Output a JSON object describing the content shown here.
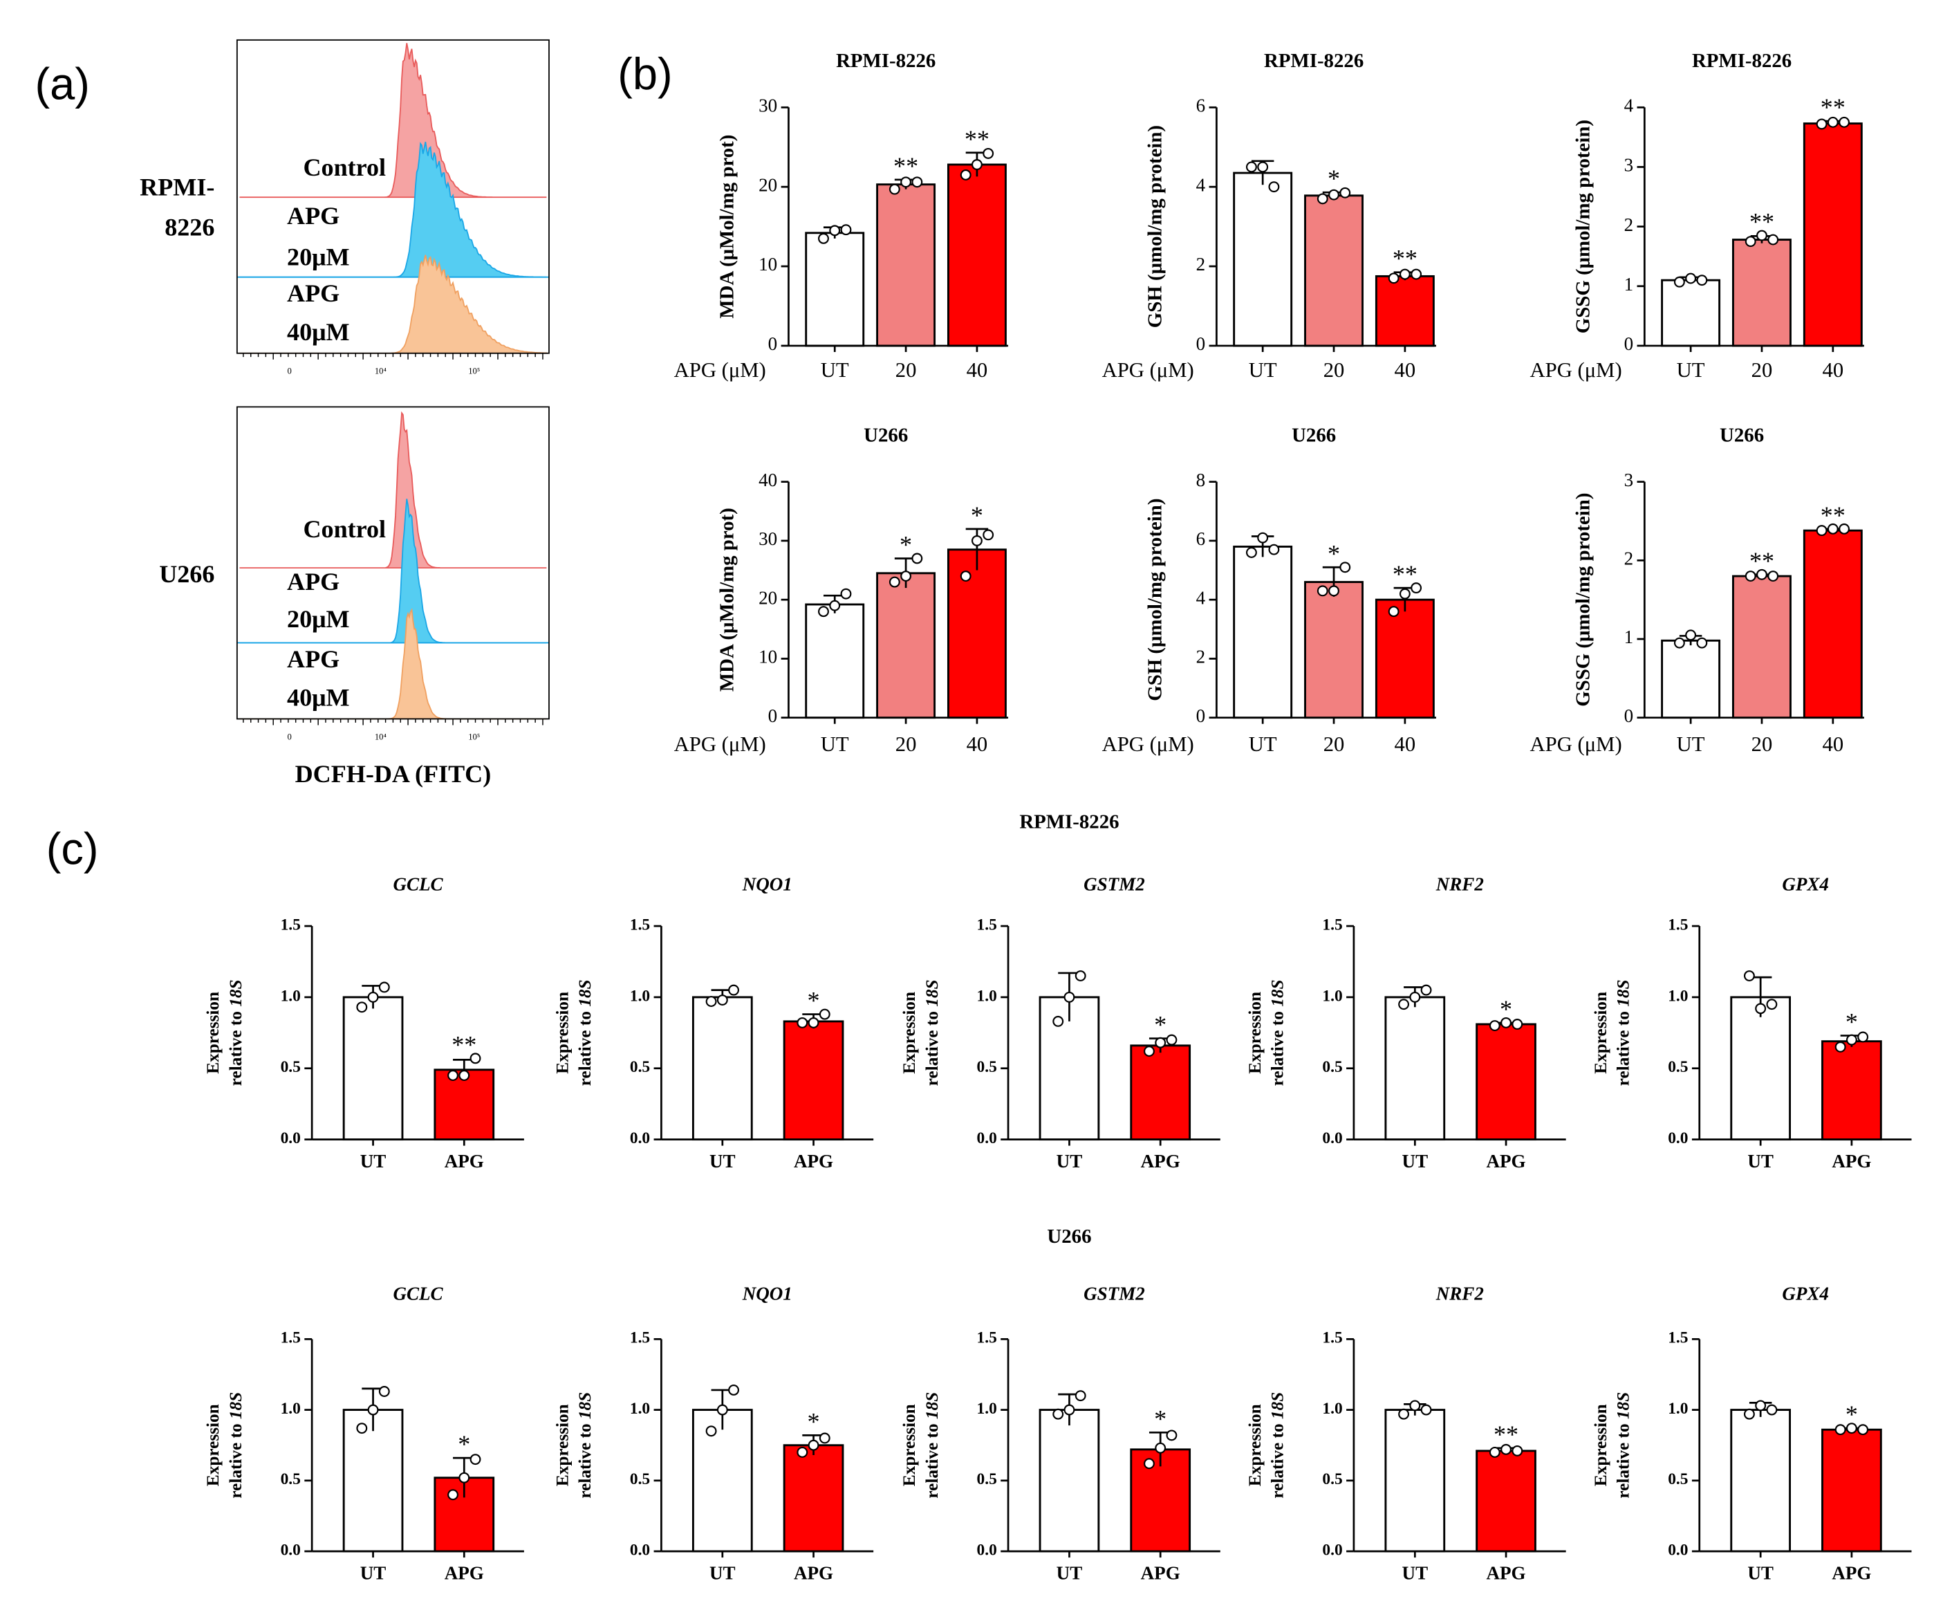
{
  "panels": {
    "a": "(a)",
    "b": "(b)",
    "c": "(c)"
  },
  "flow": {
    "groups": [
      {
        "cell": [
          "RPMI-",
          "8226"
        ],
        "labels": [
          "Control",
          "APG",
          "20μM",
          "APG",
          "40μM"
        ]
      },
      {
        "cell": [
          "U266"
        ],
        "labels": [
          "Control",
          "APG",
          "20μM",
          "APG",
          "40μM"
        ]
      }
    ],
    "xtick_labels": [
      "0",
      "10⁴",
      "10⁵"
    ],
    "xlabel": "DCFH-DA (FITC)"
  },
  "sections": [
    "RPMI-8226",
    "U266"
  ],
  "chart_data": [
    {
      "type": "bar",
      "title": "RPMI-8226",
      "ylabel": "MDA (μMol/mg prot)",
      "xlabel": "APG (μM)",
      "categories": [
        "UT",
        "20",
        "40"
      ],
      "colors": [
        "#ffffff",
        "#f28080",
        "#ff0000"
      ],
      "values": [
        14.2,
        20.3,
        22.8
      ],
      "errors": [
        0.7,
        0.6,
        1.5
      ],
      "points": [
        [
          13.5,
          14.5,
          14.6
        ],
        [
          19.7,
          20.6,
          20.6
        ],
        [
          21.5,
          22.8,
          24.2
        ]
      ],
      "annotations": [
        null,
        "**",
        "**"
      ],
      "ylim": [
        0,
        30
      ],
      "yticks": [
        0,
        10,
        20,
        30
      ]
    },
    {
      "type": "bar",
      "title": "RPMI-8226",
      "ylabel": "GSH (μmol/mg protein)",
      "xlabel": "APG (μM)",
      "categories": [
        "UT",
        "20",
        "40"
      ],
      "colors": [
        "#ffffff",
        "#f28080",
        "#ff0000"
      ],
      "values": [
        4.35,
        3.78,
        1.75
      ],
      "errors": [
        0.3,
        0.08,
        0.1
      ],
      "points": [
        [
          4.5,
          4.5,
          4.0
        ],
        [
          3.7,
          3.8,
          3.85
        ],
        [
          1.7,
          1.8,
          1.8
        ]
      ],
      "annotations": [
        null,
        "*",
        "**"
      ],
      "ylim": [
        0,
        6
      ],
      "yticks": [
        0,
        2,
        4,
        6
      ]
    },
    {
      "type": "bar",
      "title": "RPMI-8226",
      "ylabel": "GSSG (μmol/mg protein)",
      "xlabel": "APG (μM)",
      "categories": [
        "UT",
        "20",
        "40"
      ],
      "colors": [
        "#ffffff",
        "#f28080",
        "#ff0000"
      ],
      "values": [
        1.1,
        1.78,
        3.73
      ],
      "errors": [
        0.05,
        0.06,
        0.04
      ],
      "points": [
        [
          1.07,
          1.13,
          1.1
        ],
        [
          1.75,
          1.85,
          1.78
        ],
        [
          3.72,
          3.75,
          3.75
        ]
      ],
      "annotations": [
        null,
        "**",
        "**"
      ],
      "ylim": [
        0,
        4
      ],
      "yticks": [
        0,
        1,
        2,
        3,
        4
      ]
    },
    {
      "type": "bar",
      "title": "U266",
      "ylabel": "MDA (μMol/mg prot)",
      "xlabel": "APG (μM)",
      "categories": [
        "UT",
        "20",
        "40"
      ],
      "colors": [
        "#ffffff",
        "#f28080",
        "#ff0000"
      ],
      "values": [
        19.2,
        24.5,
        28.5
      ],
      "errors": [
        1.5,
        2.5,
        3.5
      ],
      "points": [
        [
          18,
          19,
          21
        ],
        [
          23,
          24,
          27
        ],
        [
          24,
          30,
          31
        ]
      ],
      "annotations": [
        null,
        "*",
        "*"
      ],
      "ylim": [
        0,
        40
      ],
      "yticks": [
        0,
        10,
        20,
        30,
        40
      ]
    },
    {
      "type": "bar",
      "title": "U266",
      "ylabel": "GSH (μmol/mg protein)",
      "xlabel": "APG (μM)",
      "categories": [
        "UT",
        "20",
        "40"
      ],
      "colors": [
        "#ffffff",
        "#f28080",
        "#ff0000"
      ],
      "values": [
        5.8,
        4.6,
        4.0
      ],
      "errors": [
        0.35,
        0.5,
        0.4
      ],
      "points": [
        [
          5.6,
          6.1,
          5.7
        ],
        [
          4.3,
          4.3,
          5.1
        ],
        [
          3.6,
          4.2,
          4.4
        ]
      ],
      "annotations": [
        null,
        "*",
        "**"
      ],
      "ylim": [
        0,
        8
      ],
      "yticks": [
        0,
        2,
        4,
        6,
        8
      ]
    },
    {
      "type": "bar",
      "title": "U266",
      "ylabel": "GSSG (μmol/mg protein)",
      "xlabel": "APG (μM)",
      "categories": [
        "UT",
        "20",
        "40"
      ],
      "colors": [
        "#ffffff",
        "#f28080",
        "#ff0000"
      ],
      "values": [
        0.98,
        1.8,
        2.38
      ],
      "errors": [
        0.06,
        0.02,
        0.02
      ],
      "points": [
        [
          0.95,
          1.05,
          0.95
        ],
        [
          1.8,
          1.82,
          1.8
        ],
        [
          2.38,
          2.4,
          2.4
        ]
      ],
      "annotations": [
        null,
        "**",
        "**"
      ],
      "ylim": [
        0,
        3
      ],
      "yticks": [
        0,
        1,
        2,
        3
      ]
    },
    {
      "type": "bar",
      "title": "GCLC",
      "title_style": "italic",
      "ylabel": [
        "Expression",
        "relative to"
      ],
      "ylabel_italic": "18S",
      "categories": [
        "UT",
        "APG"
      ],
      "colors": [
        "#ffffff",
        "#ff0000"
      ],
      "values": [
        1.0,
        0.49
      ],
      "errors": [
        0.08,
        0.07
      ],
      "points": [
        [
          0.93,
          1.0,
          1.07
        ],
        [
          0.45,
          0.45,
          0.57
        ]
      ],
      "annotations": [
        null,
        "**"
      ],
      "ylim": [
        0,
        1.5
      ],
      "yticks": [
        {
          "value": 0,
          "label": "0.0"
        },
        0.5,
        {
          "value": 1,
          "label": "1.0"
        },
        1.5
      ]
    },
    {
      "type": "bar",
      "title": "NQO1",
      "title_style": "italic",
      "ylabel": [
        "Expression",
        "relative to"
      ],
      "ylabel_italic": "18S",
      "categories": [
        "UT",
        "APG"
      ],
      "colors": [
        "#ffffff",
        "#ff0000"
      ],
      "values": [
        1.0,
        0.83
      ],
      "errors": [
        0.05,
        0.05
      ],
      "points": [
        [
          0.97,
          0.98,
          1.05
        ],
        [
          0.82,
          0.82,
          0.88
        ]
      ],
      "annotations": [
        null,
        "*"
      ],
      "ylim": [
        0,
        1.5
      ],
      "yticks": [
        {
          "value": 0,
          "label": "0.0"
        },
        0.5,
        {
          "value": 1,
          "label": "1.0"
        },
        1.5
      ]
    },
    {
      "type": "bar",
      "title": "GSTM2",
      "title_style": "italic",
      "ylabel": [
        "Expression",
        "relative to"
      ],
      "ylabel_italic": "18S",
      "categories": [
        "UT",
        "APG"
      ],
      "colors": [
        "#ffffff",
        "#ff0000"
      ],
      "values": [
        1.0,
        0.66
      ],
      "errors": [
        0.17,
        0.05
      ],
      "points": [
        [
          0.83,
          1.0,
          1.15
        ],
        [
          0.62,
          0.68,
          0.7
        ]
      ],
      "annotations": [
        null,
        "*"
      ],
      "ylim": [
        0,
        1.5
      ],
      "yticks": [
        {
          "value": 0,
          "label": "0.0"
        },
        0.5,
        {
          "value": 1,
          "label": "1.0"
        },
        1.5
      ]
    },
    {
      "type": "bar",
      "title": "NRF2",
      "title_style": "italic",
      "ylabel": [
        "Expression",
        "relative to"
      ],
      "ylabel_italic": "18S",
      "categories": [
        "UT",
        "APG"
      ],
      "colors": [
        "#ffffff",
        "#ff0000"
      ],
      "values": [
        1.0,
        0.81
      ],
      "errors": [
        0.07,
        0.01
      ],
      "points": [
        [
          0.95,
          1.0,
          1.05
        ],
        [
          0.8,
          0.82,
          0.81
        ]
      ],
      "annotations": [
        null,
        "*"
      ],
      "ylim": [
        0,
        1.5
      ],
      "yticks": [
        {
          "value": 0,
          "label": "0.0"
        },
        0.5,
        {
          "value": 1,
          "label": "1.0"
        },
        1.5
      ]
    },
    {
      "type": "bar",
      "title": "GPX4",
      "title_style": "italic",
      "ylabel": [
        "Expression",
        "relative to"
      ],
      "ylabel_italic": "18S",
      "categories": [
        "UT",
        "APG"
      ],
      "colors": [
        "#ffffff",
        "#ff0000"
      ],
      "values": [
        1.0,
        0.69
      ],
      "errors": [
        0.14,
        0.04
      ],
      "points": [
        [
          1.15,
          0.92,
          0.95
        ],
        [
          0.65,
          0.7,
          0.72
        ]
      ],
      "annotations": [
        null,
        "*"
      ],
      "ylim": [
        0,
        1.5
      ],
      "yticks": [
        {
          "value": 0,
          "label": "0.0"
        },
        0.5,
        {
          "value": 1,
          "label": "1.0"
        },
        1.5
      ]
    },
    {
      "type": "bar",
      "title": "GCLC",
      "title_style": "italic",
      "ylabel": [
        "Expression",
        "relative to"
      ],
      "ylabel_italic": "18S",
      "categories": [
        "UT",
        "APG"
      ],
      "colors": [
        "#ffffff",
        "#ff0000"
      ],
      "values": [
        1.0,
        0.52
      ],
      "errors": [
        0.15,
        0.14
      ],
      "points": [
        [
          0.87,
          1.0,
          1.13
        ],
        [
          0.4,
          0.52,
          0.65
        ]
      ],
      "annotations": [
        null,
        "*"
      ],
      "ylim": [
        0,
        1.5
      ],
      "yticks": [
        {
          "value": 0,
          "label": "0.0"
        },
        0.5,
        {
          "value": 1,
          "label": "1.0"
        },
        1.5
      ]
    },
    {
      "type": "bar",
      "title": "NQO1",
      "title_style": "italic",
      "ylabel": [
        "Expression",
        "relative to"
      ],
      "ylabel_italic": "18S",
      "categories": [
        "UT",
        "APG"
      ],
      "colors": [
        "#ffffff",
        "#ff0000"
      ],
      "values": [
        1.0,
        0.75
      ],
      "errors": [
        0.14,
        0.07
      ],
      "points": [
        [
          0.85,
          1.0,
          1.14
        ],
        [
          0.7,
          0.75,
          0.8
        ]
      ],
      "annotations": [
        null,
        "*"
      ],
      "ylim": [
        0,
        1.5
      ],
      "yticks": [
        {
          "value": 0,
          "label": "0.0"
        },
        0.5,
        {
          "value": 1,
          "label": "1.0"
        },
        1.5
      ]
    },
    {
      "type": "bar",
      "title": "GSTM2",
      "title_style": "italic",
      "ylabel": [
        "Expression",
        "relative to"
      ],
      "ylabel_italic": "18S",
      "categories": [
        "UT",
        "APG"
      ],
      "colors": [
        "#ffffff",
        "#ff0000"
      ],
      "values": [
        1.0,
        0.72
      ],
      "errors": [
        0.11,
        0.12
      ],
      "points": [
        [
          0.97,
          1.0,
          1.1
        ],
        [
          0.62,
          0.73,
          0.82
        ]
      ],
      "annotations": [
        null,
        "*"
      ],
      "ylim": [
        0,
        1.5
      ],
      "yticks": [
        {
          "value": 0,
          "label": "0.0"
        },
        0.5,
        {
          "value": 1,
          "label": "1.0"
        },
        1.5
      ]
    },
    {
      "type": "bar",
      "title": "NRF2",
      "title_style": "italic",
      "ylabel": [
        "Expression",
        "relative to"
      ],
      "ylabel_italic": "18S",
      "categories": [
        "UT",
        "APG"
      ],
      "colors": [
        "#ffffff",
        "#ff0000"
      ],
      "values": [
        1.0,
        0.71
      ],
      "errors": [
        0.04,
        0.02
      ],
      "points": [
        [
          0.97,
          1.03,
          1.0
        ],
        [
          0.7,
          0.72,
          0.71
        ]
      ],
      "annotations": [
        null,
        "**"
      ],
      "ylim": [
        0,
        1.5
      ],
      "yticks": [
        {
          "value": 0,
          "label": "0.0"
        },
        0.5,
        {
          "value": 1,
          "label": "1.0"
        },
        1.5
      ]
    },
    {
      "type": "bar",
      "title": "GPX4",
      "title_style": "italic",
      "ylabel": [
        "Expression",
        "relative to"
      ],
      "ylabel_italic": "18S",
      "categories": [
        "UT",
        "APG"
      ],
      "colors": [
        "#ffffff",
        "#ff0000"
      ],
      "values": [
        1.0,
        0.86
      ],
      "errors": [
        0.05,
        0.01
      ],
      "points": [
        [
          0.97,
          1.03,
          1.0
        ],
        [
          0.86,
          0.87,
          0.86
        ]
      ],
      "annotations": [
        null,
        "*"
      ],
      "ylim": [
        0,
        1.5
      ],
      "yticks": [
        {
          "value": 0,
          "label": "0.0"
        },
        0.5,
        {
          "value": 1,
          "label": "1.0"
        },
        1.5
      ]
    }
  ]
}
